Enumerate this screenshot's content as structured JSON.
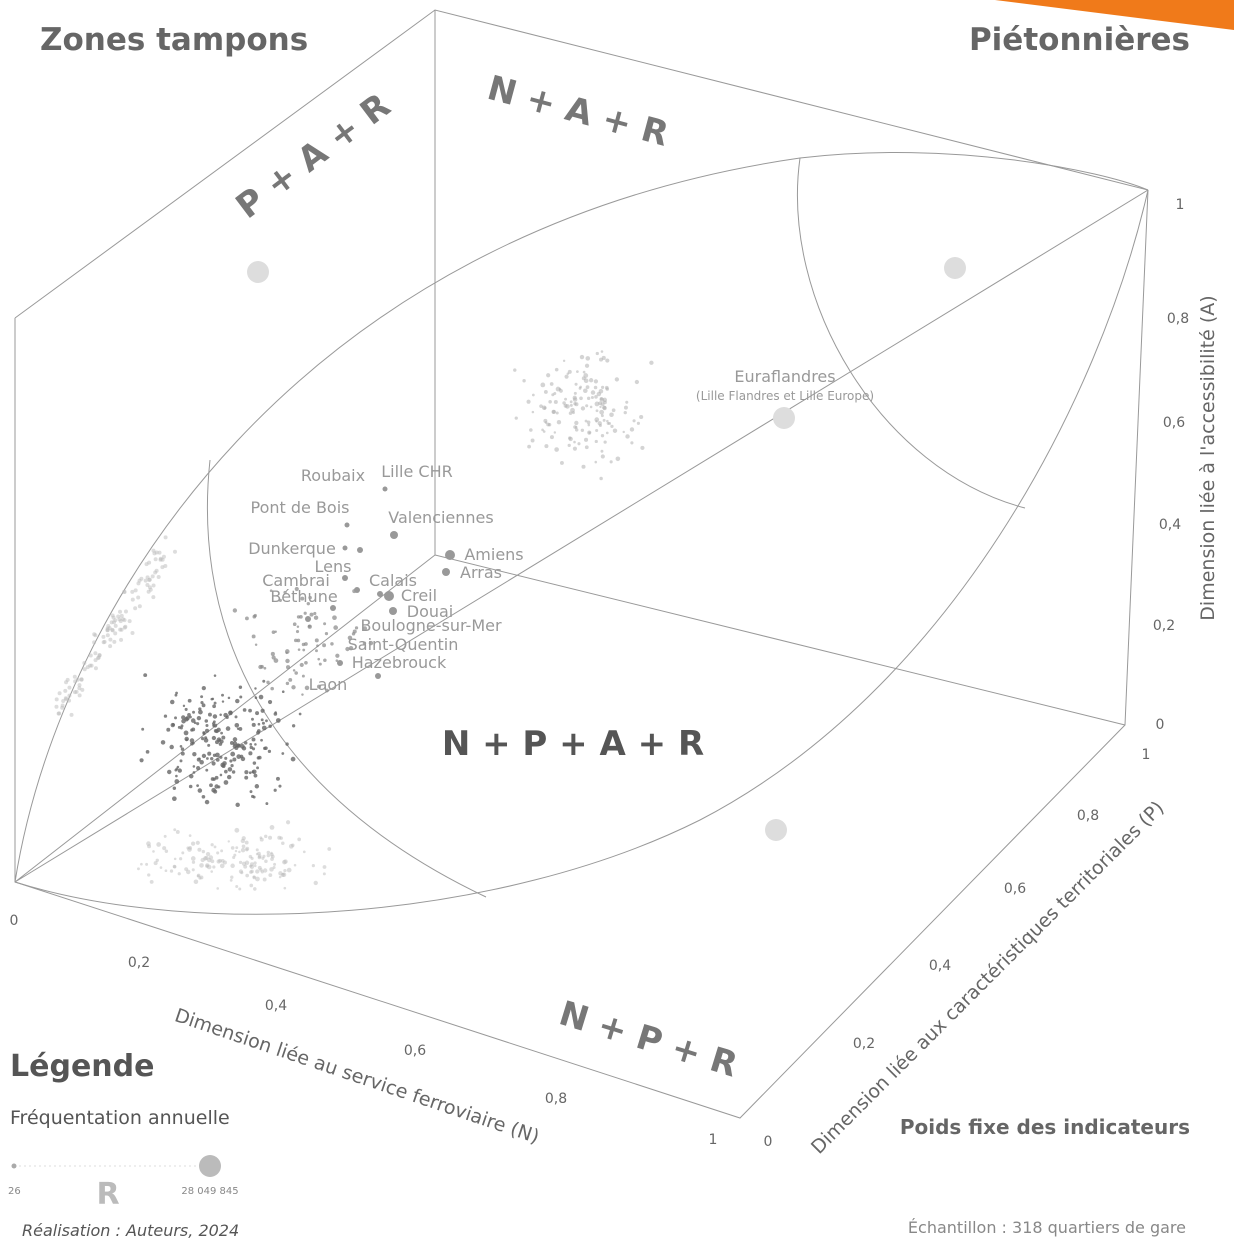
{
  "header": {
    "left_title": "Zones tampons",
    "right_title": "Piétonnières"
  },
  "zones": [
    "P + A + R",
    "N + A + R",
    "N + P + A + R",
    "N + P + R"
  ],
  "axes": {
    "n": {
      "label": "Dimension liée au service ferroviaire (N)",
      "ticks": [
        "0",
        "0,2",
        "0,4",
        "0,6",
        "0,8",
        "1"
      ]
    },
    "p": {
      "label": "Dimension liée aux caractéristiques territoriales (P)",
      "ticks": [
        "0",
        "0,2",
        "0,4",
        "0,6",
        "0,8",
        "1"
      ]
    },
    "a": {
      "label": "Dimension liée à l'accessibilité (A)",
      "ticks": [
        "0",
        "0,2",
        "0,4",
        "0,6",
        "0,8",
        "1"
      ]
    }
  },
  "cities": [
    "Euraflandres",
    "(Lille Flandres et Lille Europe)",
    "Roubaix",
    "Lille CHR",
    "Pont de Bois",
    "Valenciennes",
    "Dunkerque",
    "Amiens",
    "Lens",
    "Arras",
    "Cambrai",
    "Calais",
    "Béthune",
    "Creil",
    "Douai",
    "Boulogne-sur-Mer",
    "Saint-Quentin",
    "Hazebrouck",
    "Laon"
  ],
  "legend": {
    "title": "Légende",
    "subtitle": "Fréquentation annuelle",
    "min": "26",
    "symbol": "R",
    "max": "28 049 845"
  },
  "footer": {
    "credit": "Réalisation : Auteurs, 2024",
    "weights": "Poids fixe des indicateurs",
    "sample": "Échantillon : 318 quartiers de gare"
  }
}
